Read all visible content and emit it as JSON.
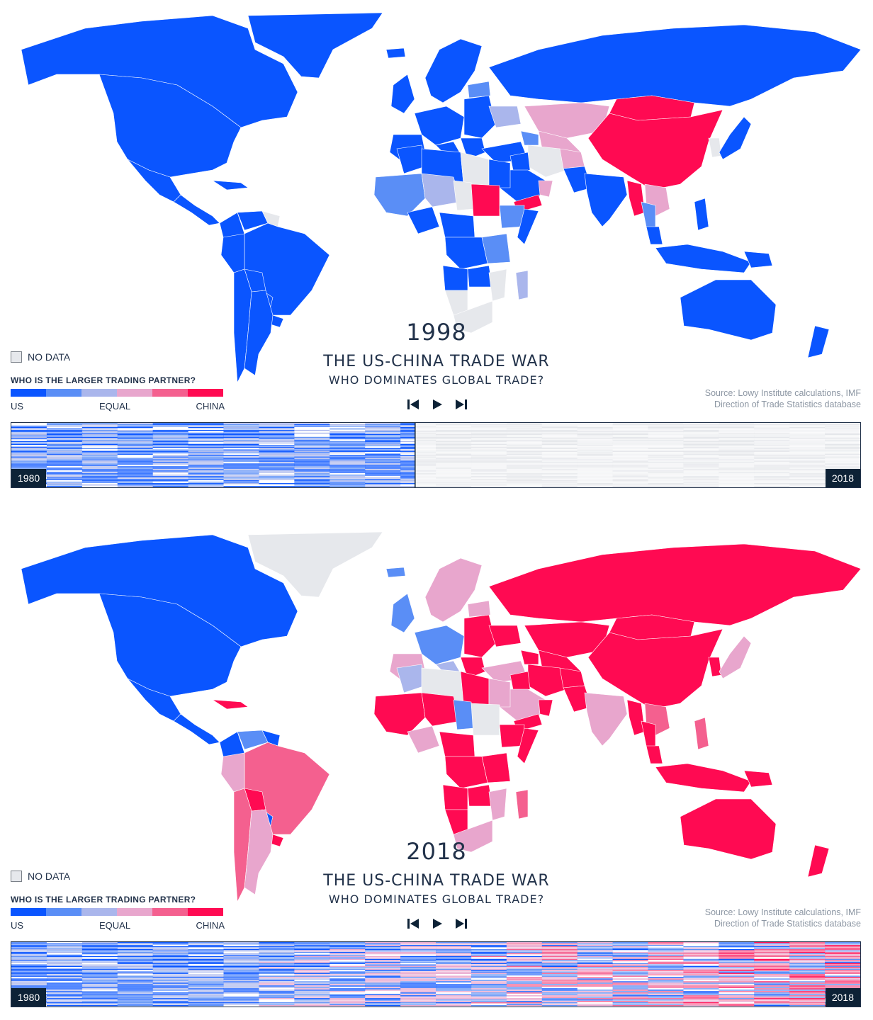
{
  "colors": {
    "us_strong": "#0a55ff",
    "us_mid": "#5a8ef6",
    "us_light": "#aab6ec",
    "china_light": "#e8a6cd",
    "china_mid": "#f4608f",
    "china_strong": "#ff0a52",
    "no_data": "#e6e8ec",
    "dark": "#0d2236"
  },
  "legend": {
    "no_data_label": "NO DATA",
    "title": "WHO IS THE LARGER TRADING PARTNER?",
    "us_label": "US",
    "equal_label": "EQUAL",
    "china_label": "CHINA",
    "scale": [
      "us_strong",
      "us_mid",
      "us_light",
      "china_light",
      "china_mid",
      "china_strong"
    ]
  },
  "chart_title": "THE US-CHINA TRADE WAR",
  "chart_subtitle": "WHO DOMINATES GLOBAL TRADE?",
  "source_line1": "Source: Lowy Institute calculations, IMF",
  "source_line2": "Direction of Trade Statistics database",
  "controls": {
    "back_icon": "skip-back-icon",
    "play_icon": "play-icon",
    "forward_icon": "skip-forward-icon"
  },
  "timeline": {
    "start_label": "1980",
    "end_label": "2018"
  },
  "panels": [
    {
      "year": "1998",
      "timeline_progress": 0.475,
      "regions": {
        "canada": "us_strong",
        "usa": "us_strong",
        "mexico": "us_strong",
        "central_america": "us_strong",
        "greenland": "us_strong",
        "caribbean": "us_strong",
        "colombia": "us_strong",
        "venezuela": "us_strong",
        "guyana": "no_data",
        "brazil": "us_strong",
        "peru": "us_strong",
        "bolivia": "us_strong",
        "paraguay": "us_strong",
        "chile": "us_strong",
        "argentina": "us_strong",
        "uruguay": "us_strong",
        "iceland": "us_strong",
        "uk_ireland": "us_strong",
        "scandinavia": "us_strong",
        "western_europe": "us_strong",
        "iberia": "us_strong",
        "italy": "us_strong",
        "eastern_europe": "us_strong",
        "baltics": "us_mid",
        "ukraine": "us_light",
        "balkans": "us_strong",
        "turkey": "us_strong",
        "caucasus": "us_mid",
        "russia": "us_strong",
        "kazakhstan": "china_light",
        "central_asia": "china_light",
        "mongolia": "china_strong",
        "china": "china_strong",
        "korea": "no_data",
        "japan": "us_strong",
        "iran": "no_data",
        "iraq": "us_strong",
        "arabia": "us_strong",
        "yemen": "china_strong",
        "oman": "china_light",
        "afghanistan": "china_light",
        "pakistan": "us_strong",
        "india": "us_strong",
        "myanmar": "china_strong",
        "indochina": "china_light",
        "thailand": "us_mid",
        "malaysia": "us_strong",
        "indonesia": "us_strong",
        "philippines": "us_strong",
        "png": "us_strong",
        "morocco": "us_strong",
        "algeria": "us_strong",
        "libya": "no_data",
        "egypt": "us_strong",
        "west_africa": "us_mid",
        "mali_niger": "us_light",
        "chad": "no_data",
        "sudan": "china_strong",
        "ethiopia": "us_mid",
        "somalia": "us_strong",
        "nigeria": "us_strong",
        "central_africa": "us_strong",
        "east_africa": "us_mid",
        "congo": "us_strong",
        "angola": "us_strong",
        "zambia": "us_strong",
        "mozambique": "no_data",
        "namibia": "no_data",
        "south_africa": "no_data",
        "madagascar": "us_light",
        "australia": "us_strong",
        "new_zealand": "us_strong"
      }
    },
    {
      "year": "2018",
      "timeline_progress": 1,
      "regions": {
        "canada": "us_strong",
        "usa": "us_strong",
        "mexico": "us_strong",
        "central_america": "us_strong",
        "greenland": "no_data",
        "caribbean": "china_strong",
        "colombia": "us_strong",
        "venezuela": "us_mid",
        "guyana": "us_strong",
        "brazil": "china_mid",
        "peru": "china_light",
        "bolivia": "china_strong",
        "paraguay": "us_strong",
        "chile": "china_mid",
        "argentina": "china_light",
        "uruguay": "china_strong",
        "iceland": "us_mid",
        "uk_ireland": "us_mid",
        "scandinavia": "china_light",
        "western_europe": "us_mid",
        "iberia": "china_light",
        "italy": "us_light",
        "eastern_europe": "china_strong",
        "baltics": "china_light",
        "ukraine": "china_strong",
        "balkans": "china_strong",
        "turkey": "china_light",
        "caucasus": "china_strong",
        "russia": "china_strong",
        "kazakhstan": "china_strong",
        "central_asia": "china_strong",
        "mongolia": "china_strong",
        "china": "china_strong",
        "korea": "china_strong",
        "japan": "china_light",
        "iran": "china_strong",
        "iraq": "china_strong",
        "arabia": "china_light",
        "yemen": "china_strong",
        "oman": "china_strong",
        "afghanistan": "china_strong",
        "pakistan": "china_strong",
        "india": "china_light",
        "myanmar": "china_strong",
        "indochina": "china_mid",
        "thailand": "china_strong",
        "malaysia": "china_strong",
        "indonesia": "china_strong",
        "philippines": "china_mid",
        "png": "china_strong",
        "morocco": "us_light",
        "algeria": "no_data",
        "libya": "china_strong",
        "egypt": "china_light",
        "west_africa": "china_strong",
        "mali_niger": "china_strong",
        "chad": "us_mid",
        "sudan": "no_data",
        "ethiopia": "china_strong",
        "somalia": "china_strong",
        "nigeria": "china_light",
        "central_africa": "china_strong",
        "east_africa": "china_strong",
        "congo": "china_strong",
        "angola": "china_strong",
        "zambia": "china_strong",
        "mozambique": "china_light",
        "namibia": "china_strong",
        "south_africa": "china_light",
        "madagascar": "china_mid",
        "australia": "china_strong",
        "new_zealand": "china_strong"
      }
    }
  ]
}
